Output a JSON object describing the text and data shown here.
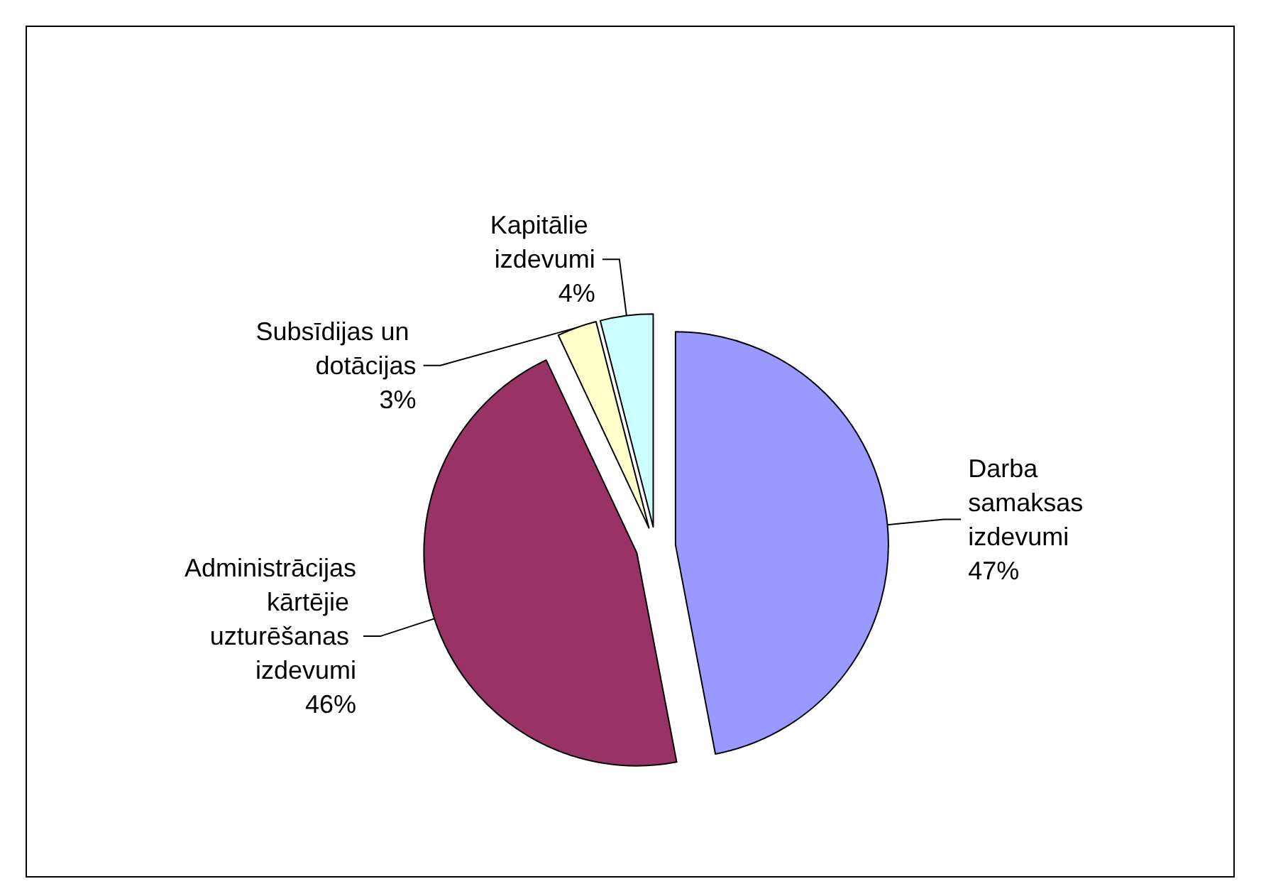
{
  "chart_data": {
    "type": "pie",
    "categories": [
      "Darba samaksas izdevumi",
      "Administrācijas kārtējie uzturēšanas izdevumi",
      "Subsīdijas un dotācijas",
      "Kapitālie izdevumi"
    ],
    "values": [
      47,
      46,
      3,
      4
    ],
    "value_labels": [
      "47%",
      "46%",
      "3%",
      "4%"
    ],
    "colors": [
      "#9999ff",
      "#993366",
      "#ffffcc",
      "#ccffff"
    ],
    "legend": false
  }
}
